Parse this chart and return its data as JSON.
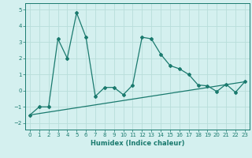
{
  "xlabel": "Humidex (Indice chaleur)",
  "ylabel": "",
  "xlim": [
    -0.5,
    23.5
  ],
  "ylim": [
    -2.4,
    5.4
  ],
  "xticks": [
    0,
    1,
    2,
    3,
    4,
    5,
    6,
    7,
    8,
    9,
    10,
    11,
    12,
    13,
    14,
    15,
    16,
    17,
    18,
    19,
    20,
    21,
    22,
    23
  ],
  "yticks": [
    -2,
    -1,
    0,
    1,
    2,
    3,
    4,
    5
  ],
  "line_color": "#1a7a6e",
  "background_color": "#d4f0ef",
  "grid_color": "#b8deda",
  "line1_x": [
    0,
    1,
    2,
    3,
    4,
    5,
    6,
    7,
    8,
    9,
    10,
    11,
    12,
    13,
    14,
    15,
    16,
    17,
    18,
    19,
    20,
    21,
    22,
    23
  ],
  "line1_y": [
    -1.5,
    -1.0,
    -1.0,
    3.2,
    2.0,
    4.8,
    3.3,
    -0.35,
    0.2,
    0.2,
    -0.25,
    0.35,
    3.3,
    3.2,
    2.25,
    1.55,
    1.35,
    1.0,
    0.35,
    0.3,
    -0.05,
    0.4,
    -0.1,
    0.55
  ],
  "line2_x": [
    0,
    23
  ],
  "line2_y": [
    -1.5,
    0.55
  ]
}
